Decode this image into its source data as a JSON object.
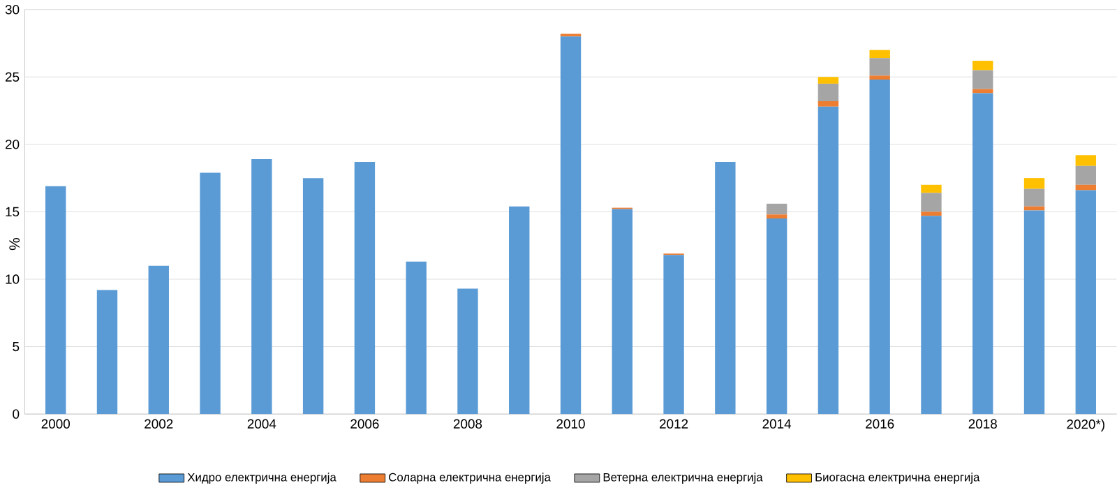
{
  "chart_data": {
    "type": "bar",
    "stacked": true,
    "ylabel": "%",
    "categories": [
      "2000",
      null,
      "2002",
      null,
      "2004",
      null,
      "2006",
      null,
      "2008",
      null,
      "2010",
      null,
      "2012",
      null,
      "2014",
      null,
      "2016",
      null,
      "2018",
      null,
      "2020*)"
    ],
    "series": [
      {
        "name": "Хидро електрична енергија",
        "color": "#5b9bd5",
        "values": [
          16.9,
          9.2,
          11.0,
          17.9,
          18.9,
          17.5,
          18.7,
          11.3,
          9.3,
          15.4,
          28.0,
          15.2,
          11.8,
          18.7,
          14.5,
          22.8,
          24.8,
          14.7,
          23.8,
          15.1,
          16.6
        ]
      },
      {
        "name": "Соларна електрична енергија",
        "color": "#ed7d31",
        "values": [
          0,
          0,
          0,
          0,
          0,
          0,
          0,
          0,
          0,
          0,
          0.2,
          0.1,
          0.1,
          0,
          0.3,
          0.4,
          0.3,
          0.3,
          0.3,
          0.3,
          0.4
        ]
      },
      {
        "name": "Ветерна електрична енергија",
        "color": "#a5a5a5",
        "values": [
          0,
          0,
          0,
          0,
          0,
          0,
          0,
          0,
          0,
          0,
          0,
          0,
          0,
          0,
          0.8,
          1.3,
          1.3,
          1.4,
          1.4,
          1.3,
          1.4
        ]
      },
      {
        "name": "Биогасна електрична енергија",
        "color": "#ffc000",
        "values": [
          0,
          0,
          0,
          0,
          0,
          0,
          0,
          0,
          0,
          0,
          0,
          0,
          0,
          0,
          0,
          0.5,
          0.6,
          0.6,
          0.7,
          0.8,
          0.8
        ]
      }
    ],
    "ylim": [
      0,
      30
    ],
    "yticks": [
      0,
      5,
      10,
      15,
      20,
      25,
      30
    ],
    "grid": "y",
    "legend": "bottom"
  }
}
